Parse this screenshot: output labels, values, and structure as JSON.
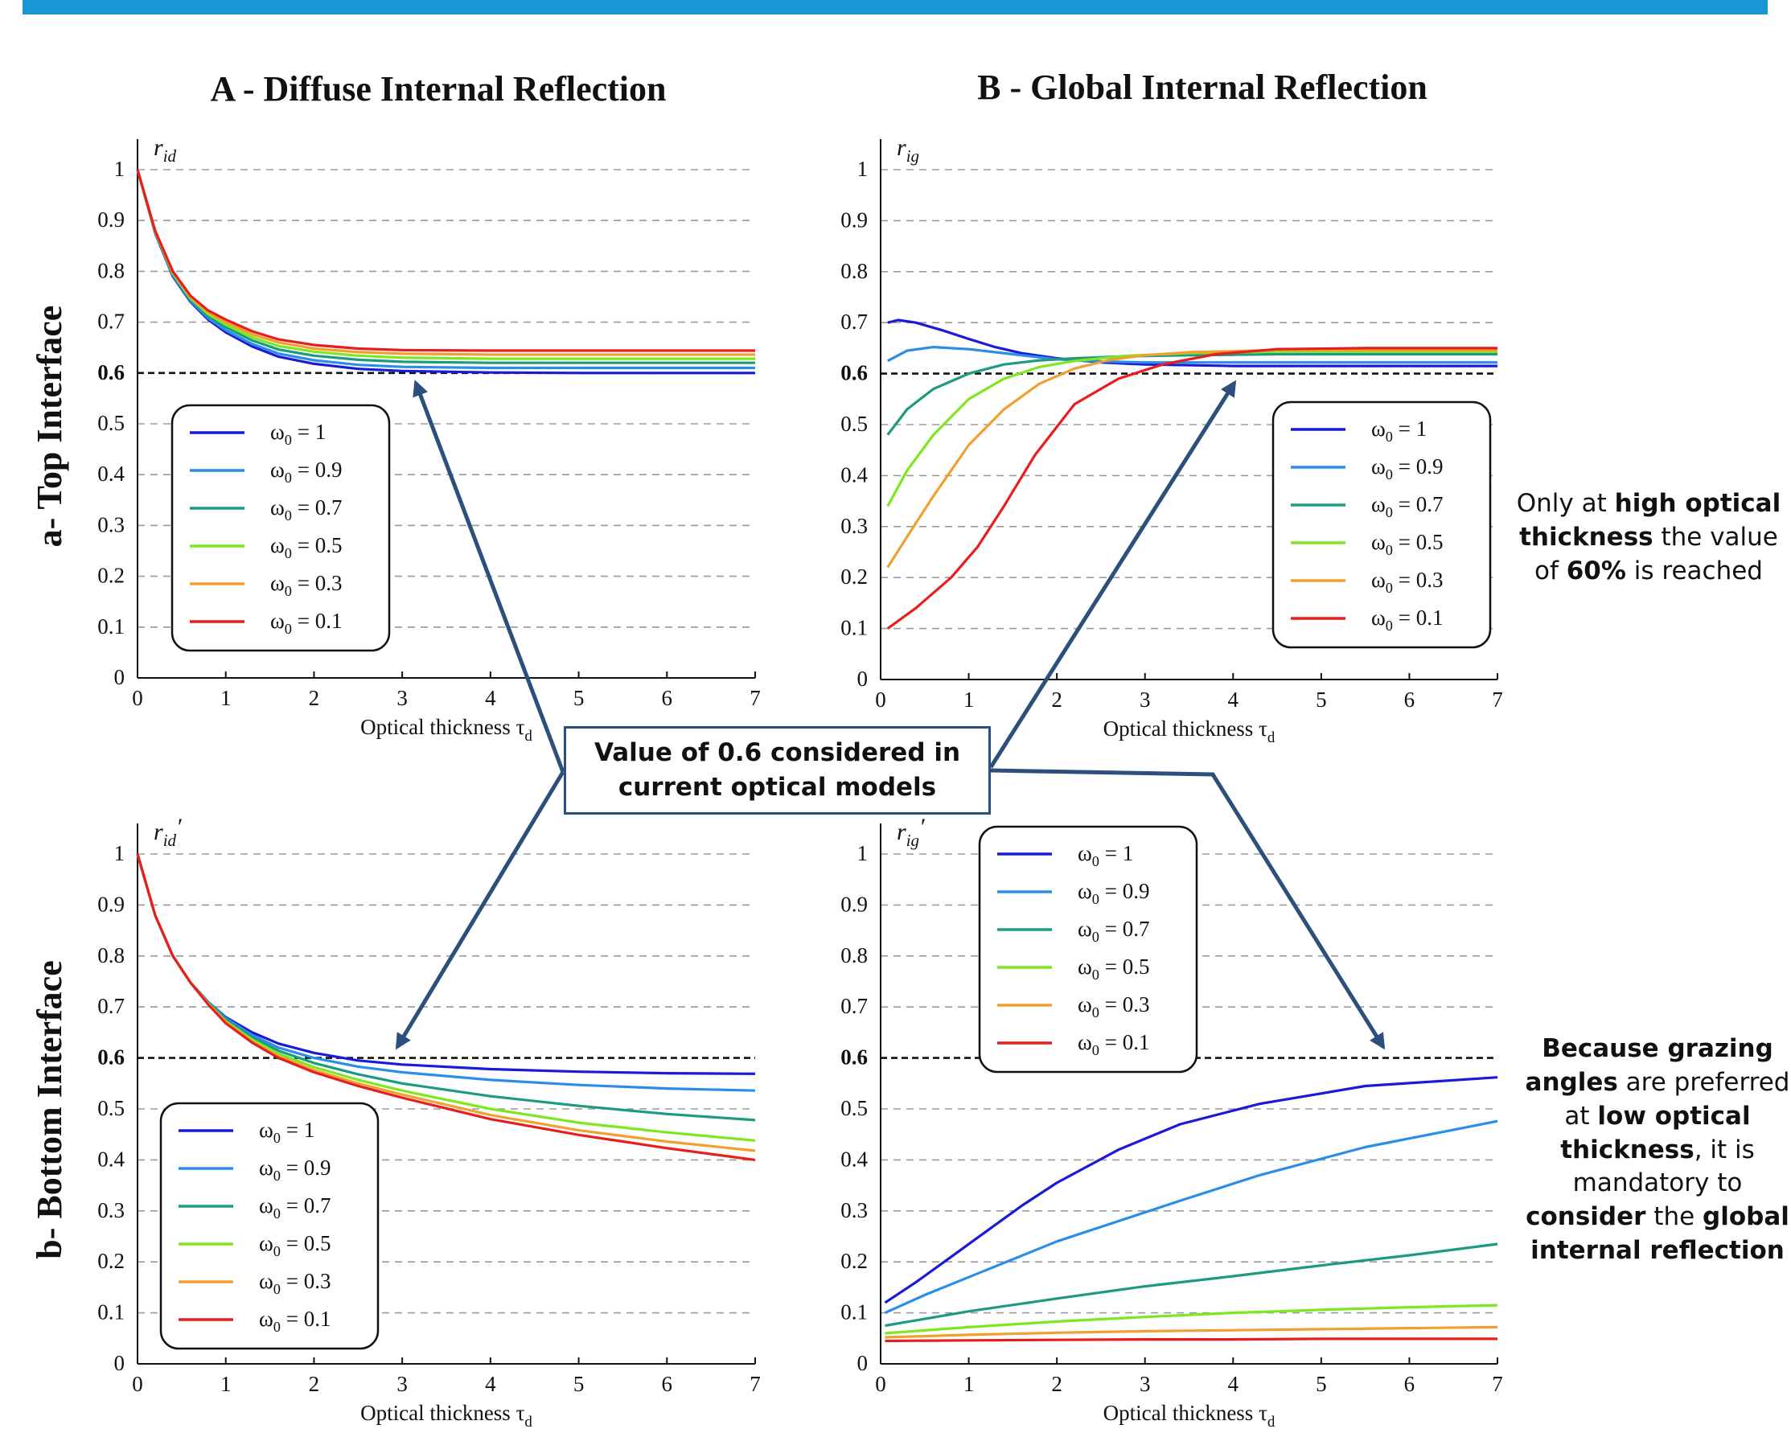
{
  "panel_titles": {
    "col_a": "A - Diffuse Internal Reflection",
    "col_b": "B - Global Internal Reflection",
    "row_a": "a- Top Interface",
    "row_b": "b- Bottom Interface"
  },
  "callout": {
    "line1": "Value of 0.6 considered in",
    "line2": "current optical models"
  },
  "note_top": {
    "p1": "Only at ",
    "b1": "high optical thickness",
    "p2": " the value of ",
    "b2": "60%",
    "p3": " is reached"
  },
  "note_bottom": {
    "b1": "Because grazing angles",
    "p1": " are preferred at ",
    "b2": "low optical thickness",
    "p2": ", it is mandatory to ",
    "b3": "consider",
    "p3": " the ",
    "b4": "global internal reflection"
  },
  "colors": {
    "w1": "#1a1ad8",
    "w09": "#2a8ee8",
    "w07": "#1e9a80",
    "w05": "#7de81e",
    "w03": "#f0a030",
    "w01": "#e81e1e",
    "callout_border": "#2c4f7c",
    "header_bar": "#1a96d4"
  },
  "chart_data": [
    {
      "id": "top-diffuse",
      "type": "line",
      "ylabel": "r_id",
      "xlabel": "Optical thickness τ_d",
      "xlim": [
        0,
        7
      ],
      "ylim": [
        0,
        1
      ],
      "xticks": [
        "0",
        "1",
        "2",
        "3",
        "4",
        "5",
        "6",
        "7"
      ],
      "yticks": [
        "0",
        "0.1",
        "0.2",
        "0.3",
        "0.4",
        "0.5",
        "0.6",
        "0.7",
        "0.8",
        "0.9",
        "1"
      ],
      "reference_line": 0.6,
      "legend_position": "left",
      "series": [
        {
          "name": "ω0 = 1",
          "x": [
            0,
            0.2,
            0.4,
            0.6,
            0.8,
            1,
            1.3,
            1.6,
            2,
            2.5,
            3,
            4,
            5,
            6,
            7
          ],
          "y": [
            1,
            0.875,
            0.79,
            0.74,
            0.705,
            0.68,
            0.652,
            0.632,
            0.618,
            0.608,
            0.604,
            0.601,
            0.6,
            0.6,
            0.6
          ]
        },
        {
          "name": "ω0 = 0.9",
          "x": [
            0,
            0.2,
            0.4,
            0.6,
            0.8,
            1,
            1.3,
            1.6,
            2,
            2.5,
            3,
            4,
            5,
            6,
            7
          ],
          "y": [
            1,
            0.876,
            0.792,
            0.742,
            0.708,
            0.684,
            0.657,
            0.638,
            0.625,
            0.616,
            0.612,
            0.61,
            0.61,
            0.61,
            0.61
          ]
        },
        {
          "name": "ω0 = 0.7",
          "x": [
            0,
            0.2,
            0.4,
            0.6,
            0.8,
            1,
            1.3,
            1.6,
            2,
            2.5,
            3,
            4,
            5,
            6,
            7
          ],
          "y": [
            1,
            0.877,
            0.794,
            0.745,
            0.712,
            0.69,
            0.664,
            0.646,
            0.634,
            0.626,
            0.622,
            0.62,
            0.62,
            0.62,
            0.62
          ]
        },
        {
          "name": "ω0 = 0.5",
          "x": [
            0,
            0.2,
            0.4,
            0.6,
            0.8,
            1,
            1.3,
            1.6,
            2,
            2.5,
            3,
            4,
            5,
            6,
            7
          ],
          "y": [
            1,
            0.878,
            0.796,
            0.747,
            0.716,
            0.695,
            0.67,
            0.653,
            0.642,
            0.634,
            0.63,
            0.628,
            0.628,
            0.628,
            0.628
          ]
        },
        {
          "name": "ω0 = 0.3",
          "x": [
            0,
            0.2,
            0.4,
            0.6,
            0.8,
            1,
            1.3,
            1.6,
            2,
            2.5,
            3,
            4,
            5,
            6,
            7
          ],
          "y": [
            1,
            0.879,
            0.798,
            0.75,
            0.72,
            0.7,
            0.676,
            0.66,
            0.648,
            0.641,
            0.638,
            0.636,
            0.636,
            0.636,
            0.636
          ]
        },
        {
          "name": "ω0 = 0.1",
          "x": [
            0,
            0.2,
            0.4,
            0.6,
            0.8,
            1,
            1.3,
            1.6,
            2,
            2.5,
            3,
            4,
            5,
            6,
            7
          ],
          "y": [
            1,
            0.88,
            0.8,
            0.752,
            0.723,
            0.705,
            0.682,
            0.666,
            0.655,
            0.648,
            0.645,
            0.644,
            0.644,
            0.644,
            0.644
          ]
        }
      ]
    },
    {
      "id": "top-global",
      "type": "line",
      "ylabel": "r_ig",
      "xlabel": "Optical thickness τ_d",
      "xlim": [
        0,
        7
      ],
      "ylim": [
        0,
        1
      ],
      "xticks": [
        "0",
        "1",
        "2",
        "3",
        "4",
        "5",
        "6",
        "7"
      ],
      "yticks": [
        "0",
        "0.1",
        "0.2",
        "0.3",
        "0.4",
        "0.5",
        "0.6",
        "0.7",
        "0.8",
        "0.9",
        "1"
      ],
      "reference_line": 0.6,
      "legend_position": "right",
      "series": [
        {
          "name": "ω0 = 1",
          "x": [
            0.08,
            0.2,
            0.4,
            0.7,
            1,
            1.3,
            1.6,
            2,
            2.5,
            3,
            4,
            5,
            6,
            7
          ],
          "y": [
            0.7,
            0.705,
            0.7,
            0.685,
            0.668,
            0.652,
            0.64,
            0.63,
            0.622,
            0.618,
            0.615,
            0.615,
            0.615,
            0.615
          ]
        },
        {
          "name": "ω0 = 0.9",
          "x": [
            0.08,
            0.3,
            0.6,
            1,
            1.5,
            2,
            2.5,
            3,
            4,
            5,
            6,
            7
          ],
          "y": [
            0.625,
            0.645,
            0.652,
            0.648,
            0.638,
            0.628,
            0.624,
            0.622,
            0.622,
            0.622,
            0.622,
            0.622
          ]
        },
        {
          "name": "ω0 = 0.7",
          "x": [
            0.08,
            0.3,
            0.6,
            1,
            1.4,
            1.8,
            2.2,
            2.8,
            3.5,
            4.5,
            5.5,
            7
          ],
          "y": [
            0.48,
            0.53,
            0.57,
            0.6,
            0.618,
            0.626,
            0.63,
            0.634,
            0.636,
            0.638,
            0.638,
            0.638
          ]
        },
        {
          "name": "ω0 = 0.5",
          "x": [
            0.08,
            0.3,
            0.6,
            1,
            1.4,
            1.8,
            2.2,
            2.8,
            3.5,
            4.5,
            5.5,
            7
          ],
          "y": [
            0.34,
            0.41,
            0.48,
            0.55,
            0.59,
            0.613,
            0.625,
            0.635,
            0.64,
            0.643,
            0.643,
            0.643
          ]
        },
        {
          "name": "ω0 = 0.3",
          "x": [
            0.08,
            0.3,
            0.6,
            1,
            1.4,
            1.8,
            2.2,
            2.6,
            3,
            3.5,
            4.5,
            5.5,
            7
          ],
          "y": [
            0.22,
            0.28,
            0.36,
            0.46,
            0.53,
            0.58,
            0.61,
            0.627,
            0.636,
            0.642,
            0.646,
            0.646,
            0.646
          ]
        },
        {
          "name": "ω0 = 0.1",
          "x": [
            0.08,
            0.4,
            0.8,
            1.1,
            1.4,
            1.75,
            2.2,
            2.7,
            3.2,
            3.8,
            4.5,
            5.5,
            7
          ],
          "y": [
            0.1,
            0.14,
            0.2,
            0.26,
            0.34,
            0.44,
            0.54,
            0.59,
            0.618,
            0.638,
            0.648,
            0.65,
            0.65
          ]
        }
      ]
    },
    {
      "id": "bottom-diffuse",
      "type": "line",
      "ylabel": "r_id′",
      "xlabel": "Optical thickness τ_d",
      "xlim": [
        0,
        7
      ],
      "ylim": [
        0,
        1
      ],
      "xticks": [
        "0",
        "1",
        "2",
        "3",
        "4",
        "5",
        "6",
        "7"
      ],
      "yticks": [
        "0",
        "0.1",
        "0.2",
        "0.3",
        "0.4",
        "0.5",
        "0.6",
        "0.7",
        "0.8",
        "0.9",
        "1"
      ],
      "reference_line": 0.6,
      "legend_position": "bottom-left",
      "series": [
        {
          "name": "ω0 = 1",
          "x": [
            0,
            0.2,
            0.4,
            0.6,
            0.8,
            1,
            1.3,
            1.6,
            2,
            2.5,
            3,
            4,
            5,
            6,
            7
          ],
          "y": [
            1,
            0.88,
            0.8,
            0.748,
            0.71,
            0.68,
            0.65,
            0.628,
            0.61,
            0.595,
            0.587,
            0.578,
            0.573,
            0.57,
            0.569
          ]
        },
        {
          "name": "ω0 = 0.9",
          "x": [
            0,
            0.2,
            0.4,
            0.6,
            0.8,
            1,
            1.3,
            1.6,
            2,
            2.5,
            3,
            4,
            5,
            6,
            7
          ],
          "y": [
            1,
            0.88,
            0.8,
            0.748,
            0.71,
            0.678,
            0.645,
            0.62,
            0.6,
            0.583,
            0.572,
            0.557,
            0.547,
            0.54,
            0.536
          ]
        },
        {
          "name": "ω0 = 0.7",
          "x": [
            0,
            0.2,
            0.4,
            0.6,
            0.8,
            1,
            1.3,
            1.6,
            2,
            2.5,
            3,
            4,
            5,
            6,
            7
          ],
          "y": [
            1,
            0.88,
            0.8,
            0.748,
            0.708,
            0.675,
            0.64,
            0.614,
            0.59,
            0.568,
            0.55,
            0.525,
            0.506,
            0.49,
            0.478
          ]
        },
        {
          "name": "ω0 = 0.5",
          "x": [
            0,
            0.2,
            0.4,
            0.6,
            0.8,
            1,
            1.3,
            1.6,
            2,
            2.5,
            3,
            4,
            5,
            6,
            7
          ],
          "y": [
            1,
            0.88,
            0.8,
            0.748,
            0.707,
            0.672,
            0.636,
            0.608,
            0.582,
            0.557,
            0.536,
            0.5,
            0.473,
            0.454,
            0.438
          ]
        },
        {
          "name": "ω0 = 0.3",
          "x": [
            0,
            0.2,
            0.4,
            0.6,
            0.8,
            1,
            1.3,
            1.6,
            2,
            2.5,
            3,
            4,
            5,
            6,
            7
          ],
          "y": [
            1,
            0.88,
            0.8,
            0.748,
            0.706,
            0.67,
            0.632,
            0.603,
            0.576,
            0.55,
            0.528,
            0.488,
            0.458,
            0.436,
            0.418
          ]
        },
        {
          "name": "ω0 = 0.1",
          "x": [
            0,
            0.2,
            0.4,
            0.6,
            0.8,
            1,
            1.3,
            1.6,
            2,
            2.5,
            3,
            4,
            5,
            6,
            7
          ],
          "y": [
            1,
            0.88,
            0.8,
            0.748,
            0.705,
            0.668,
            0.63,
            0.6,
            0.572,
            0.545,
            0.522,
            0.48,
            0.449,
            0.423,
            0.4
          ]
        }
      ]
    },
    {
      "id": "bottom-global",
      "type": "line",
      "ylabel": "r_ig′",
      "xlabel": "Optical thickness τ_d",
      "xlim": [
        0,
        7
      ],
      "ylim": [
        0,
        1
      ],
      "xticks": [
        "0",
        "1",
        "2",
        "3",
        "4",
        "5",
        "6",
        "7"
      ],
      "yticks": [
        "0",
        "0.1",
        "0.2",
        "0.3",
        "0.4",
        "0.5",
        "0.6",
        "0.7",
        "0.8",
        "0.9",
        "1"
      ],
      "reference_line": 0.6,
      "legend_position": "top-left",
      "series": [
        {
          "name": "ω0 = 1",
          "x": [
            0.05,
            0.4,
            0.8,
            1.2,
            1.6,
            2,
            2.7,
            3.4,
            4.3,
            5.5,
            7
          ],
          "y": [
            0.12,
            0.16,
            0.21,
            0.26,
            0.31,
            0.355,
            0.42,
            0.47,
            0.51,
            0.545,
            0.562
          ]
        },
        {
          "name": "ω0 = 0.9",
          "x": [
            0.05,
            0.5,
            1,
            1.5,
            2,
            2.7,
            3.4,
            4.3,
            5.5,
            7
          ],
          "y": [
            0.1,
            0.135,
            0.17,
            0.205,
            0.24,
            0.28,
            0.32,
            0.37,
            0.425,
            0.476
          ]
        },
        {
          "name": "ω0 = 0.7",
          "x": [
            0.05,
            1,
            2,
            3,
            4,
            5,
            6,
            7
          ],
          "y": [
            0.075,
            0.103,
            0.128,
            0.152,
            0.172,
            0.193,
            0.213,
            0.235
          ]
        },
        {
          "name": "ω0 = 0.5",
          "x": [
            0.05,
            1,
            2,
            3,
            4,
            5,
            6,
            7
          ],
          "y": [
            0.06,
            0.072,
            0.083,
            0.092,
            0.1,
            0.106,
            0.111,
            0.115
          ]
        },
        {
          "name": "ω0 = 0.3",
          "x": [
            0.05,
            1,
            2,
            3,
            4,
            5,
            6,
            7
          ],
          "y": [
            0.052,
            0.057,
            0.061,
            0.064,
            0.066,
            0.068,
            0.07,
            0.072
          ]
        },
        {
          "name": "ω0 = 0.1",
          "x": [
            0.05,
            1,
            2,
            3,
            4,
            5,
            6,
            7
          ],
          "y": [
            0.045,
            0.046,
            0.047,
            0.048,
            0.048,
            0.049,
            0.049,
            0.049
          ]
        }
      ]
    }
  ]
}
